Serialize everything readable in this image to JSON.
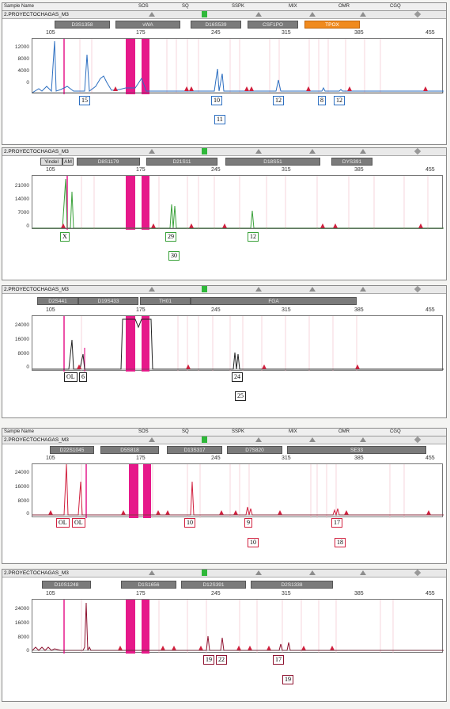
{
  "header": {
    "sample_name": "Sample Name",
    "sos": "SOS",
    "sq": "SQ",
    "sspk": "SSPK",
    "mix": "MIX",
    "omr": "OMR",
    "cgq": "CGQ"
  },
  "xticks": [
    "105",
    "175",
    "245",
    "315",
    "385",
    "455"
  ],
  "colors": {
    "blue": "#2d6fc1",
    "green": "#3aa13a",
    "black": "#222222",
    "red": "#d1213f",
    "magenta": "#e6198a"
  },
  "panels": [
    {
      "title": "2.PROYECTOCHAGAS_M3",
      "loci": [
        {
          "label": "D3S1358"
        },
        {
          "label": "vWA"
        },
        {
          "label": "D16S539"
        },
        {
          "label": "CSF1PO"
        },
        {
          "label": "TPOX",
          "highlight": true
        }
      ],
      "yticks": [
        "12000",
        "8000",
        "4000",
        "0"
      ],
      "alleles": [
        "15",
        "10",
        "11",
        "12",
        "8",
        "12"
      ],
      "color": "blue"
    },
    {
      "title": "2.PROYECTOCHAGAS_M3",
      "loci": [
        {
          "label": "Yindel"
        },
        {
          "label": "AM"
        },
        {
          "label": "D8S1179"
        },
        {
          "label": "D21S11"
        },
        {
          "label": "D18S51"
        },
        {
          "label": "DYS391"
        }
      ],
      "yticks": [
        "21000",
        "14000",
        "7000",
        "0"
      ],
      "alleles": [
        "X",
        "29",
        "30",
        "12"
      ],
      "color": "green"
    },
    {
      "title": "2.PROYECTOCHAGAS_M3",
      "loci": [
        {
          "label": "D2S441"
        },
        {
          "label": "D19S433"
        },
        {
          "label": "TH01"
        },
        {
          "label": "FGA"
        }
      ],
      "yticks": [
        "24000",
        "16000",
        "8000",
        "0"
      ],
      "alleles": [
        "OL",
        "6",
        "24",
        "25"
      ],
      "color": "black"
    },
    {
      "title": "2.PROYECTOCHAGAS_M3",
      "loci": [
        {
          "label": "D22S1045"
        },
        {
          "label": "D5S818"
        },
        {
          "label": "D13S317"
        },
        {
          "label": "D7S820"
        },
        {
          "label": "SE33"
        }
      ],
      "yticks": [
        "24000",
        "16000",
        "8000",
        "0"
      ],
      "alleles": [
        "OL",
        "OL",
        "10",
        "9",
        "10",
        "17",
        "18"
      ],
      "color": "red"
    },
    {
      "title": "2.PROYECTOCHAGAS_M3",
      "loci": [
        {
          "label": "D10S1248"
        },
        {
          "label": "D1S1656"
        },
        {
          "label": "D12S391"
        },
        {
          "label": "D2S1338"
        }
      ],
      "yticks": [
        "24000",
        "16000",
        "8000",
        "0"
      ],
      "alleles": [
        "19",
        "22",
        "17",
        "19"
      ],
      "color": "red"
    }
  ]
}
